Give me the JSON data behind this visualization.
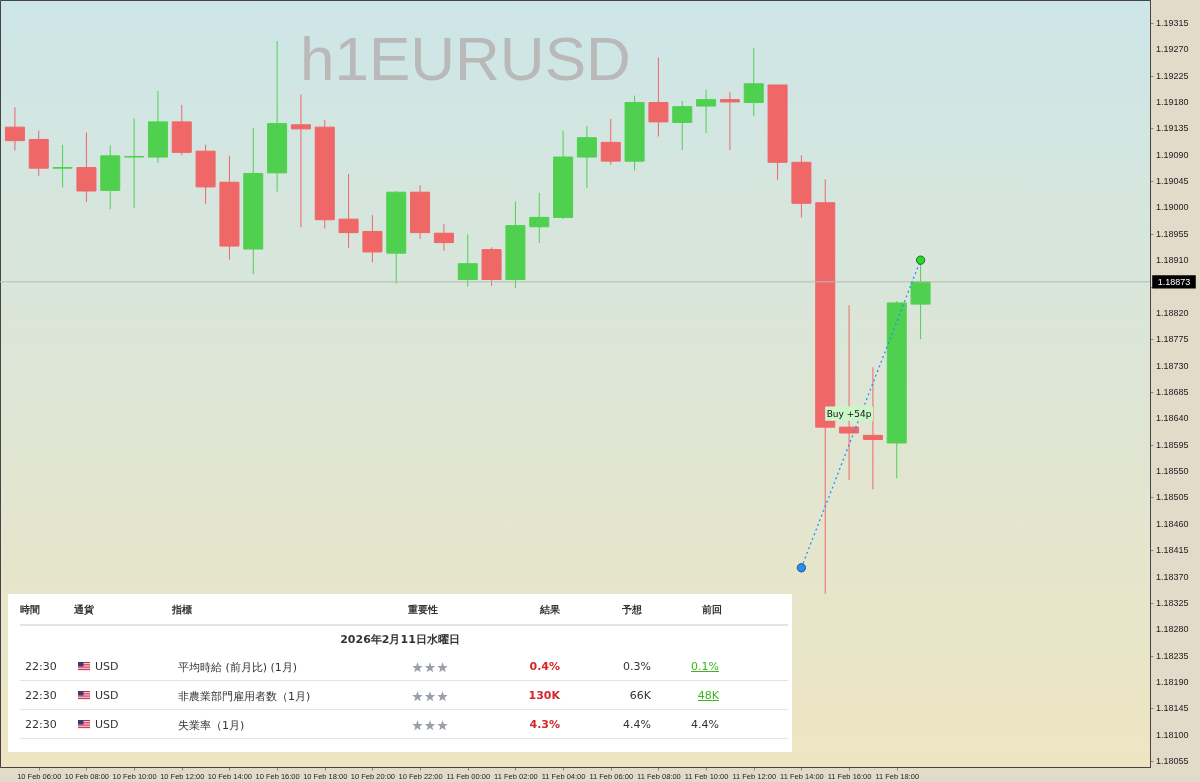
{
  "chart_data": [
    {
      "type": "candlestick",
      "title": "h1EURUSD",
      "x": [
        "2026-02-10T05:00",
        "2026-02-10T06:00",
        "2026-02-10T07:00",
        "2026-02-10T08:00",
        "2026-02-10T09:00",
        "2026-02-10T10:00",
        "2026-02-10T11:00",
        "2026-02-10T12:00",
        "2026-02-10T13:00",
        "2026-02-10T14:00",
        "2026-02-10T15:00",
        "2026-02-10T16:00",
        "2026-02-10T17:00",
        "2026-02-10T18:00",
        "2026-02-10T19:00",
        "2026-02-10T20:00",
        "2026-02-10T21:00",
        "2026-02-10T22:00",
        "2026-02-10T23:00",
        "2026-02-11T00:00",
        "2026-02-11T01:00",
        "2026-02-11T02:00",
        "2026-02-11T03:00",
        "2026-02-11T04:00",
        "2026-02-11T05:00",
        "2026-02-11T06:00",
        "2026-02-11T07:00",
        "2026-02-11T08:00",
        "2026-02-11T09:00",
        "2026-02-11T10:00",
        "2026-02-11T11:00",
        "2026-02-11T12:00",
        "2026-02-11T13:00",
        "2026-02-11T14:00",
        "2026-02-11T15:00",
        "2026-02-11T16:00",
        "2026-02-11T17:00",
        "2026-02-11T18:00",
        "2026-02-11T19:00"
      ],
      "ohlc": [
        [
          1.19137,
          1.19171,
          1.19097,
          1.19114
        ],
        [
          1.19116,
          1.19131,
          1.19054,
          1.19067
        ],
        [
          1.19067,
          1.19107,
          1.19034,
          1.19068
        ],
        [
          1.19068,
          1.19128,
          1.19009,
          1.19028
        ],
        [
          1.19029,
          1.19106,
          1.18997,
          1.19088
        ],
        [
          1.19086,
          1.19152,
          1.18999,
          1.19087
        ],
        [
          1.19086,
          1.19199,
          1.19076,
          1.19146
        ],
        [
          1.19146,
          1.19175,
          1.19089,
          1.19094
        ],
        [
          1.19096,
          1.19107,
          1.19006,
          1.19035
        ],
        [
          1.19043,
          1.19088,
          1.18911,
          1.18934
        ],
        [
          1.18929,
          1.19136,
          1.18886,
          1.19058
        ],
        [
          1.19059,
          1.19284,
          1.19027,
          1.19143
        ],
        [
          1.19141,
          1.19193,
          1.18966,
          1.19134
        ],
        [
          1.19137,
          1.19149,
          1.18964,
          1.18979
        ],
        [
          1.1898,
          1.19057,
          1.18931,
          1.18957
        ],
        [
          1.18959,
          1.18987,
          1.18906,
          1.18924
        ],
        [
          1.18922,
          1.19028,
          1.1887,
          1.19026
        ],
        [
          1.19026,
          1.19038,
          1.18946,
          1.18957
        ],
        [
          1.18956,
          1.18972,
          1.18926,
          1.1894
        ],
        [
          1.18877,
          1.18954,
          1.18865,
          1.18904
        ],
        [
          1.18928,
          1.18932,
          1.18866,
          1.18877
        ],
        [
          1.18877,
          1.1901,
          1.18862,
          1.18969
        ],
        [
          1.18967,
          1.19025,
          1.18939,
          1.18983
        ],
        [
          1.18983,
          1.19131,
          1.1898,
          1.19086
        ],
        [
          1.19086,
          1.19139,
          1.19033,
          1.19119
        ],
        [
          1.19111,
          1.19151,
          1.19073,
          1.19079
        ],
        [
          1.19079,
          1.19191,
          1.19063,
          1.19179
        ],
        [
          1.19179,
          1.19256,
          1.19121,
          1.19146
        ],
        [
          1.19145,
          1.19182,
          1.19098,
          1.19172
        ],
        [
          1.19173,
          1.19201,
          1.19127,
          1.19184
        ],
        [
          1.19184,
          1.19197,
          1.19098,
          1.1918
        ],
        [
          1.19179,
          1.19272,
          1.19156,
          1.19211
        ],
        [
          1.19209,
          1.19209,
          1.19047,
          1.19077
        ],
        [
          1.19077,
          1.19089,
          1.18983,
          1.19007
        ],
        [
          1.19008,
          1.19048,
          1.18341,
          1.18625
        ],
        [
          1.18625,
          1.18833,
          1.18535,
          1.18615
        ],
        [
          1.18611,
          1.18727,
          1.18519,
          1.18604
        ],
        [
          1.18598,
          1.1884,
          1.18538,
          1.18837
        ],
        [
          1.18835,
          1.1891,
          1.18775,
          1.18873
        ]
      ],
      "colors": [
        "#ef6767",
        "#ef6767",
        "#4fd14f",
        "#ef6767",
        "#4fd14f",
        "#4fd14f",
        "#4fd14f",
        "#ef6767",
        "#ef6767",
        "#ef6767",
        "#4fd14f",
        "#4fd14f",
        "#ef6767",
        "#ef6767",
        "#ef6767",
        "#ef6767",
        "#4fd14f",
        "#ef6767",
        "#ef6767",
        "#4fd14f",
        "#ef6767",
        "#4fd14f",
        "#4fd14f",
        "#4fd14f",
        "#4fd14f",
        "#ef6767",
        "#4fd14f",
        "#ef6767",
        "#4fd14f",
        "#4fd14f",
        "#ef6767",
        "#4fd14f",
        "#ef6767",
        "#ef6767",
        "#ef6767",
        "#ef6767",
        "#ef6767",
        "#4fd14f",
        "#4fd14f"
      ],
      "series": [
        {
          "type": "line",
          "x": [
            "2026-02-11T14:00",
            "2026-02-11T19:00"
          ],
          "values": [
            1.18385,
            1.1891
          ],
          "color": "#1e90ff",
          "colors": [
            "#1e90ff",
            "#22dd22"
          ]
        }
      ],
      "marker": "circle",
      "line_style": "dotted",
      "annotations": [
        {
          "text": "Buy +54p",
          "x": "2026-02-11T16:00",
          "y": 1.18648
        }
      ],
      "ref_lines": [
        {
          "axis": "y",
          "value": 1.18873,
          "label": "1.18873",
          "color": "#b4bcb4"
        }
      ],
      "xlim": [
        "2026-02-10T04:35",
        "2026-02-12T04:25"
      ],
      "xticks": [
        {
          "value": "2026-02-10T06:00",
          "label": "10 Feb 06:00"
        },
        {
          "value": "2026-02-10T08:00",
          "label": "10 Feb 08:00"
        },
        {
          "value": "2026-02-10T10:00",
          "label": "10 Feb 10:00"
        },
        {
          "value": "2026-02-10T12:00",
          "label": "10 Feb 12:00"
        },
        {
          "value": "2026-02-10T14:00",
          "label": "10 Feb 14:00"
        },
        {
          "value": "2026-02-10T16:00",
          "label": "10 Feb 16:00"
        },
        {
          "value": "2026-02-10T18:00",
          "label": "10 Feb 18:00"
        },
        {
          "value": "2026-02-10T20:00",
          "label": "10 Feb 20:00"
        },
        {
          "value": "2026-02-10T22:00",
          "label": "10 Feb 22:00"
        },
        {
          "value": "2026-02-11T00:00",
          "label": "11 Feb 00:00"
        },
        {
          "value": "2026-02-11T02:00",
          "label": "11 Feb 02:00"
        },
        {
          "value": "2026-02-11T04:00",
          "label": "11 Feb 04:00"
        },
        {
          "value": "2026-02-11T06:00",
          "label": "11 Feb 06:00"
        },
        {
          "value": "2026-02-11T08:00",
          "label": "11 Feb 08:00"
        },
        {
          "value": "2026-02-11T10:00",
          "label": "11 Feb 10:00"
        },
        {
          "value": "2026-02-11T12:00",
          "label": "11 Feb 12:00"
        },
        {
          "value": "2026-02-11T14:00",
          "label": "11 Feb 14:00"
        },
        {
          "value": "2026-02-11T16:00",
          "label": "11 Feb 16:00"
        },
        {
          "value": "2026-02-11T18:00",
          "label": "11 Feb 18:00"
        }
      ],
      "ylim": [
        1.18045,
        1.19354
      ],
      "yticks": [
        1.18055,
        {
          "value": 1.181,
          "label": "1.18100"
        },
        1.18145,
        {
          "value": 1.1819,
          "label": "1.18190"
        },
        1.18235,
        {
          "value": 1.1828,
          "label": "1.18280"
        },
        1.18325,
        {
          "value": 1.1837,
          "label": "1.18370"
        },
        1.18415,
        {
          "value": 1.1846,
          "label": "1.18460"
        },
        1.18505,
        {
          "value": 1.1855,
          "label": "1.18550"
        },
        1.18595,
        {
          "value": 1.1864,
          "label": "1.18640"
        },
        1.18685,
        {
          "value": 1.1873,
          "label": "1.18730"
        },
        1.18775,
        {
          "value": 1.1882,
          "label": "1.18820"
        },
        {
          "value": 1.18865,
          "label": null
        },
        {
          "value": 1.1891,
          "label": "1.18910"
        },
        1.18955,
        {
          "value": 1.19,
          "label": "1.19000"
        },
        1.19045,
        {
          "value": 1.1909,
          "label": "1.19090"
        },
        1.19135,
        {
          "value": 1.1918,
          "label": "1.19180"
        },
        1.19225,
        {
          "value": 1.1927,
          "label": "1.19270"
        },
        1.19315
      ]
    },
    {
      "type": "other",
      "title": "2026年2月11日水曜日",
      "categories": [
        "時間",
        "通貨",
        "指標",
        "重要性",
        "結果",
        "予想",
        "前回"
      ],
      "cell_labels": [
        [
          "22:30",
          "USD",
          "平均時給 (前月比) (1月)",
          null,
          "0.4%",
          "0.3%",
          "0.1%"
        ],
        [
          "22:30",
          "USD",
          "非農業部門雇用者数（1月)",
          null,
          "130K",
          "66K",
          "48K"
        ],
        [
          "22:30",
          "USD",
          "失業率（1月)",
          null,
          "4.3%",
          "4.4%",
          "4.4%"
        ]
      ]
    }
  ]
}
